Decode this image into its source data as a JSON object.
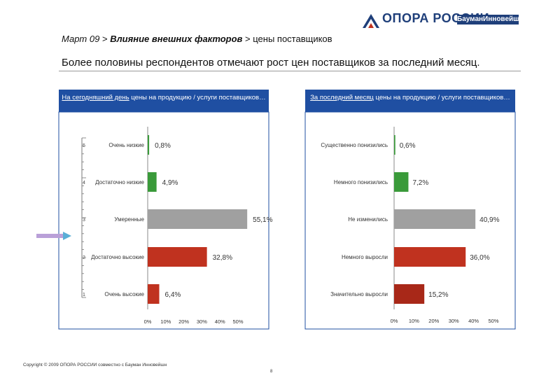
{
  "header": {
    "logo_text": "ОПОРА РОССИИ",
    "partner": "БауманИнновейшн",
    "breadcrumb": {
      "part1": "Март 09",
      "sep": ">",
      "part2": "Влияние внешних факторов",
      "part3": "цены поставщиков"
    },
    "headline": "Более половины респондентов отмечают рост цен поставщиков за последний месяц."
  },
  "panels": {
    "left": {
      "title_underlined": "На сегодняшний день",
      "title_rest": " цены на продукцию / услуги поставщиков…"
    },
    "right": {
      "title_underlined": "За последний месяц",
      "title_rest": " цены на продукцию / услуги поставщиков…"
    }
  },
  "chart_data": [
    {
      "type": "bar",
      "orientation": "horizontal",
      "categories": [
        "Очень низкие",
        "Достаточно низкие",
        "Умеренные",
        "Достаточно высокие",
        "Очень высокие"
      ],
      "scale_labels": [
        "5",
        "4",
        "3",
        "2",
        "1"
      ],
      "values": [
        0.8,
        4.9,
        55.1,
        32.8,
        6.4
      ],
      "value_labels": [
        "0,8%",
        "4,9%",
        "55,1%",
        "32,8%",
        "6,4%"
      ],
      "colors": [
        "#3a9a3a",
        "#3a9a3a",
        "#a0a0a0",
        "#c0321f",
        "#c0321f"
      ],
      "xlim": [
        0,
        50
      ],
      "ticks": [
        "0%",
        "10%",
        "20%",
        "30%",
        "40%",
        "50%"
      ]
    },
    {
      "type": "bar",
      "orientation": "horizontal",
      "categories": [
        "Существенно понизились",
        "Немного понизились",
        "Не изменились",
        "Немного выросли",
        "Значительно выросли"
      ],
      "values": [
        0.6,
        7.2,
        40.9,
        36.0,
        15.2
      ],
      "value_labels": [
        "0,6%",
        "7,2%",
        "40,9%",
        "36,0%",
        "15,2%"
      ],
      "colors": [
        "#3a9a3a",
        "#3a9a3a",
        "#a0a0a0",
        "#c0321f",
        "#a82818"
      ],
      "xlim": [
        0,
        50
      ],
      "ticks": [
        "0%",
        "10%",
        "20%",
        "30%",
        "40%",
        "50%"
      ]
    }
  ],
  "footer": {
    "copyright": "Copyright © 2009 ОПОРА РОССИИ совместно с Бауман Инновейшн",
    "page": "8"
  }
}
